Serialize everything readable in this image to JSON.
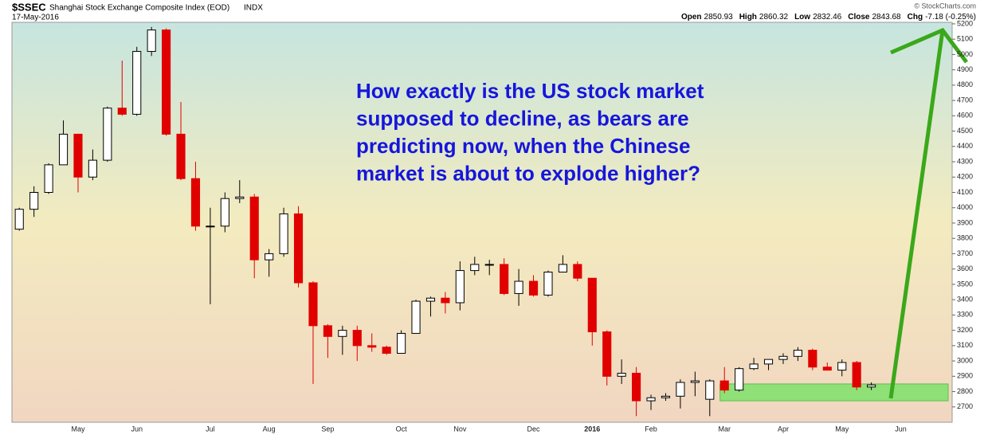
{
  "chart_data": {
    "type": "candlestick",
    "symbol": "$SSEC",
    "title": "Shanghai Stock Exchange Composite Index (EOD)",
    "exchange": "INDX",
    "date": "17-May-2016",
    "credit": "© StockCharts.com",
    "quote": [
      {
        "label": "Open",
        "value": "2850.93"
      },
      {
        "label": "High",
        "value": "2860.32"
      },
      {
        "label": "Low",
        "value": "2832.46"
      },
      {
        "label": "Close",
        "value": "2843.68"
      },
      {
        "label": "Chg",
        "value": "-7.18 (-0.25%)"
      }
    ],
    "annotation": [
      "How exactly is the US stock market",
      "supposed to decline, as bears are",
      "predicting now, when the Chinese",
      "market is about to explode higher?"
    ],
    "categories": [
      null,
      null,
      null,
      null,
      "May",
      null,
      null,
      null,
      "Jun",
      null,
      null,
      null,
      null,
      "Jul",
      null,
      null,
      null,
      "Aug",
      null,
      null,
      null,
      "Sep",
      null,
      null,
      null,
      null,
      "Oct",
      null,
      null,
      null,
      "Nov",
      null,
      null,
      null,
      null,
      "Dec",
      null,
      null,
      null,
      "2016",
      null,
      null,
      null,
      "Feb",
      null,
      null,
      null,
      null,
      "Mar",
      null,
      null,
      null,
      "Apr",
      null,
      null,
      null,
      "May",
      null,
      null,
      null,
      "Jun",
      null,
      null,
      null
    ],
    "open": [
      3860,
      3990,
      4100,
      4280,
      4480,
      4200,
      4310,
      4650,
      4610,
      5020,
      5160,
      4480,
      4190,
      3880,
      3880,
      4060,
      4070,
      3660,
      3700,
      3960,
      3510,
      3230,
      3160,
      3200,
      3100,
      3090,
      3050,
      3180,
      3390,
      3410,
      3380,
      3590,
      3630,
      3630,
      3440,
      3520,
      3430,
      3580,
      3630,
      3540,
      3190,
      2900,
      2920,
      2740,
      2760,
      2770,
      2860,
      2750,
      2870,
      2810,
      2950,
      2980,
      3010,
      3030,
      3070,
      2960,
      2940,
      2990,
      2830,
      null,
      null,
      null,
      null,
      null
    ],
    "high": [
      4000,
      4140,
      4290,
      4570,
      4480,
      4380,
      4660,
      4960,
      5050,
      5180,
      5170,
      4690,
      4300,
      4000,
      4100,
      4180,
      4090,
      3730,
      4000,
      4010,
      3520,
      3240,
      3230,
      3230,
      3180,
      3100,
      3200,
      3400,
      3420,
      3450,
      3650,
      3680,
      3660,
      3670,
      3600,
      3560,
      3590,
      3690,
      3650,
      3540,
      3200,
      3010,
      2960,
      2780,
      2790,
      2880,
      2930,
      2880,
      2960,
      2960,
      3020,
      3010,
      3050,
      3090,
      3080,
      2990,
      3010,
      3000,
      2860.32,
      null,
      null,
      null,
      null,
      null
    ],
    "low": [
      3850,
      3940,
      4090,
      4280,
      4100,
      4180,
      4300,
      4600,
      4600,
      4990,
      4470,
      4180,
      3850,
      3370,
      3840,
      4030,
      3540,
      3550,
      3680,
      3480,
      2850,
      3020,
      3040,
      3000,
      3060,
      3040,
      3050,
      3180,
      3290,
      3310,
      3330,
      3560,
      3560,
      3430,
      3360,
      3420,
      3420,
      3580,
      3520,
      3100,
      2840,
      2850,
      2640,
      2680,
      2740,
      2690,
      2770,
      2640,
      2790,
      2800,
      2940,
      2940,
      2980,
      3000,
      2940,
      2940,
      2900,
      2810,
      2810,
      null,
      null,
      null,
      null,
      null
    ],
    "close": [
      3990,
      4100,
      4280,
      4480,
      4200,
      4310,
      4650,
      4610,
      5020,
      5160,
      4480,
      4190,
      3880,
      3880,
      4060,
      4070,
      3660,
      3700,
      3960,
      3510,
      3230,
      3160,
      3200,
      3100,
      3090,
      3050,
      3180,
      3390,
      3410,
      3380,
      3590,
      3630,
      3630,
      3440,
      3520,
      3430,
      3580,
      3630,
      3540,
      3190,
      2900,
      2920,
      2740,
      2760,
      2770,
      2860,
      2870,
      2870,
      2810,
      2950,
      2980,
      3010,
      3030,
      3070,
      2960,
      2940,
      2990,
      2830,
      2843.68,
      null,
      null,
      null,
      null,
      null
    ],
    "up_color": "#000000",
    "down_color": "#e00000",
    "support_zone": [
      2740,
      2850
    ],
    "support_color": "#7ee06a",
    "ylim": [
      2600,
      5210
    ],
    "yticks": [
      2700,
      2800,
      2900,
      3000,
      3100,
      3200,
      3300,
      3400,
      3500,
      3600,
      3700,
      3800,
      3900,
      4000,
      4100,
      4200,
      4300,
      4400,
      4500,
      4600,
      4700,
      4800,
      4900,
      5000,
      5100,
      5200
    ],
    "grid": false
  }
}
